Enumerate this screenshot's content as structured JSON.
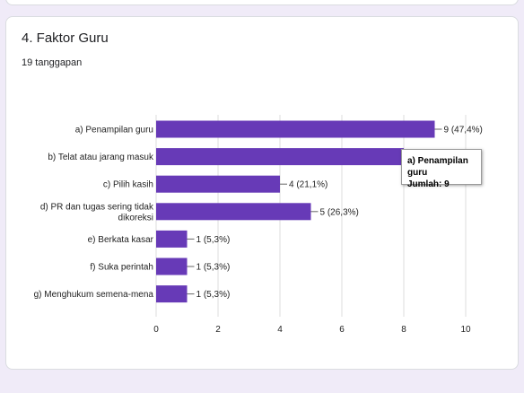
{
  "question": {
    "title": "4. Faktor Guru",
    "responses": "19 tanggapan"
  },
  "tooltip": {
    "label": "a) Penampilan guru",
    "value": "Jumlah: 9"
  },
  "colors": {
    "bar": "#673ab7",
    "grid": "#dddddd",
    "text": "#222222"
  },
  "chart_data": {
    "type": "bar",
    "orientation": "horizontal",
    "categories": [
      "a) Penampilan guru",
      "b) Telat atau jarang masuk",
      "c) Pilih kasih",
      "d) PR dan tugas sering tidak dikoreksi",
      "e) Berkata kasar",
      "f) Suka perintah",
      "g) Menghukum semena-mena"
    ],
    "category_lines": [
      [
        "a) Penampilan guru"
      ],
      [
        "b) Telat atau jarang masuk"
      ],
      [
        "c) Pilih kasih"
      ],
      [
        "d) PR dan tugas sering tidak",
        "dikoreksi"
      ],
      [
        "e) Berkata kasar"
      ],
      [
        "f) Suka perintah"
      ],
      [
        "g) Menghukum semena-mena"
      ]
    ],
    "values": [
      9,
      8,
      4,
      5,
      1,
      1,
      1
    ],
    "data_labels": [
      "9 (47,4%)",
      "",
      "4 (21,1%)",
      "5 (26,3%)",
      "1 (5,3%)",
      "1 (5,3%)",
      "1 (5,3%)"
    ],
    "xlim": [
      0,
      10
    ],
    "xticks": [
      0,
      2,
      4,
      6,
      8,
      10
    ],
    "grid": true
  }
}
